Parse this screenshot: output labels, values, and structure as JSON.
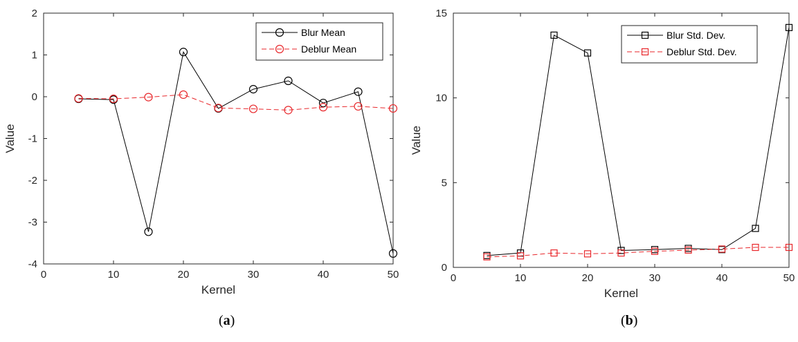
{
  "chart_data": [
    {
      "type": "line",
      "caption_open": "(",
      "caption_letter": "a",
      "caption_close": ")",
      "xlabel": "Kernel",
      "ylabel": "Value",
      "xlim": [
        0,
        50
      ],
      "ylim": [
        -4,
        2
      ],
      "x_ticks": [
        0,
        10,
        20,
        30,
        40,
        50
      ],
      "y_ticks": [
        -4,
        -3,
        -2,
        -1,
        0,
        1,
        2
      ],
      "legend_position": "top-right",
      "grid": false,
      "x": [
        5,
        10,
        15,
        20,
        25,
        30,
        35,
        40,
        45,
        50
      ],
      "series": [
        {
          "name": "Blur Mean",
          "color": "#000000",
          "marker": "circle",
          "line_style": "solid",
          "values": [
            -0.05,
            -0.07,
            -3.23,
            1.07,
            -0.28,
            0.18,
            0.38,
            -0.15,
            0.12,
            -3.75
          ]
        },
        {
          "name": "Deblur Mean",
          "color": "#e8262a",
          "marker": "circle",
          "line_style": "dashed",
          "values": [
            -0.04,
            -0.05,
            -0.01,
            0.05,
            -0.27,
            -0.29,
            -0.32,
            -0.25,
            -0.23,
            -0.28
          ]
        }
      ]
    },
    {
      "type": "line",
      "caption_open": "(",
      "caption_letter": "b",
      "caption_close": ")",
      "xlabel": "Kernel",
      "ylabel": "Value",
      "xlim": [
        0,
        50
      ],
      "ylim": [
        0,
        15
      ],
      "x_ticks": [
        0,
        10,
        20,
        30,
        40,
        50
      ],
      "y_ticks": [
        0,
        5,
        10,
        15
      ],
      "legend_position": "top-right",
      "grid": false,
      "x": [
        5,
        10,
        15,
        20,
        25,
        30,
        35,
        40,
        45,
        50
      ],
      "series": [
        {
          "name": "Blur Std. Dev.",
          "color": "#000000",
          "marker": "square",
          "line_style": "solid",
          "values": [
            0.7,
            0.85,
            13.7,
            12.65,
            1.0,
            1.05,
            1.12,
            1.05,
            2.3,
            14.15
          ]
        },
        {
          "name": "Deblur Std. Dev.",
          "color": "#e8262a",
          "marker": "square",
          "line_style": "dashed",
          "values": [
            0.62,
            0.68,
            0.85,
            0.8,
            0.85,
            0.95,
            1.02,
            1.08,
            1.18,
            1.18
          ]
        }
      ]
    }
  ]
}
